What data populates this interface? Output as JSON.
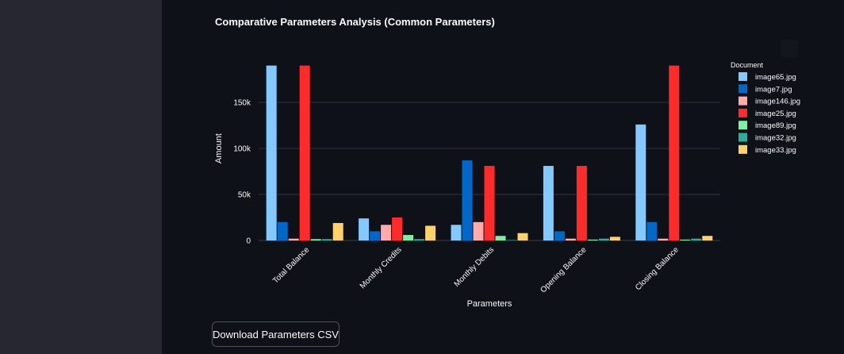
{
  "chart_data": {
    "type": "bar",
    "title": "Comparative Parameters Analysis (Common Parameters)",
    "xlabel": "Parameters",
    "ylabel": "Amount",
    "ylim": [
      0,
      200000
    ],
    "yticks": [
      0,
      50000,
      100000,
      150000
    ],
    "ytick_labels": [
      "0",
      "50k",
      "100k",
      "150k"
    ],
    "grid": true,
    "legend_title": "Document",
    "legend_position": "right",
    "categories": [
      "Total Balance",
      "Monthly Credits",
      "Monthly Debits",
      "Opening Balance",
      "Closing Balance"
    ],
    "series": [
      {
        "name": "image65.jpg",
        "color": "#83c9ff",
        "values": [
          190000,
          24000,
          17000,
          81000,
          126000
        ]
      },
      {
        "name": "image7.jpg",
        "color": "#0068c9",
        "values": [
          20000,
          10000,
          87000,
          10000,
          20000
        ]
      },
      {
        "name": "image146.jpg",
        "color": "#ffabab",
        "values": [
          2000,
          17000,
          20000,
          2000,
          2000
        ]
      },
      {
        "name": "image25.jpg",
        "color": "#ff2b2b",
        "values": [
          190000,
          25000,
          81000,
          81000,
          190000
        ]
      },
      {
        "name": "image89.jpg",
        "color": "#7defa1",
        "values": [
          1500,
          6000,
          5000,
          1000,
          1000
        ]
      },
      {
        "name": "image32.jpg",
        "color": "#29b09d",
        "values": [
          1500,
          1500,
          500,
          2000,
          2000
        ]
      },
      {
        "name": "image33.jpg",
        "color": "#ffd16a",
        "values": [
          19000,
          16000,
          8000,
          4000,
          5000
        ]
      }
    ]
  },
  "actions": {
    "download_label": "Download Parameters CSV"
  }
}
